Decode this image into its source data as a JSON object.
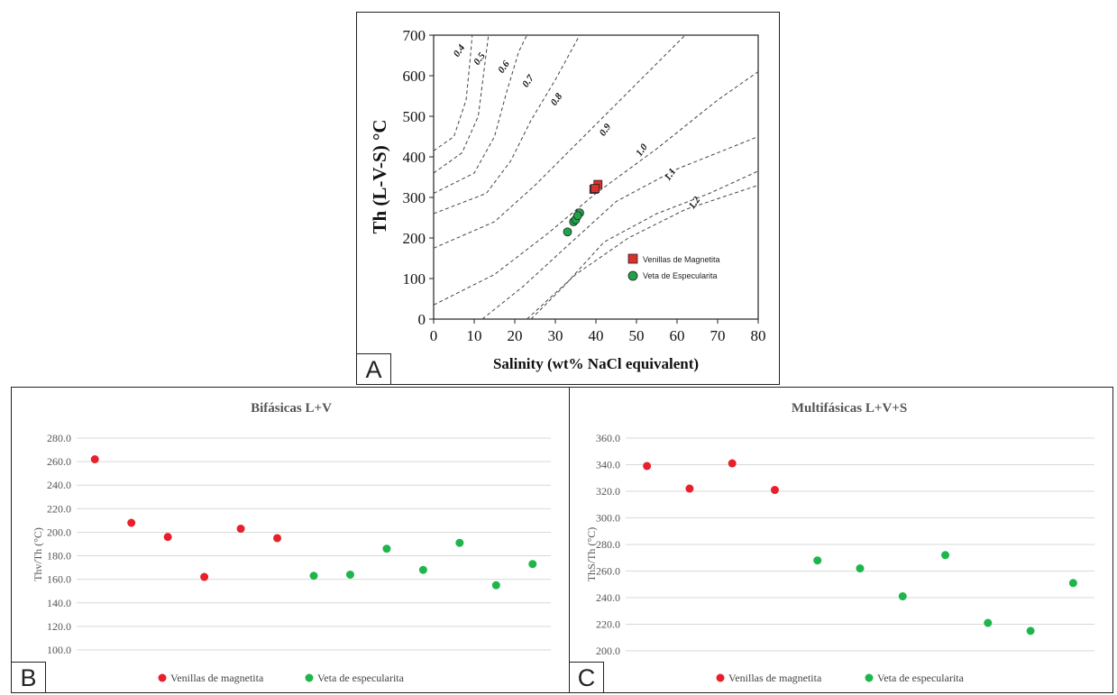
{
  "chart_data": [
    {
      "panel_label": "A",
      "type": "scatter",
      "xlabel": "Salinity (wt% NaCl equivalent)",
      "ylabel": "Th (L-V-S) °C",
      "xlim": [
        0,
        80
      ],
      "ylim": [
        0,
        700
      ],
      "x_ticks": [
        "0",
        "10",
        "20",
        "30",
        "40",
        "50",
        "60",
        "70",
        "80"
      ],
      "y_ticks": [
        "0",
        "100",
        "200",
        "300",
        "400",
        "500",
        "600",
        "700"
      ],
      "isochores": [
        {
          "label": "0.4",
          "points": [
            [
              0,
              415
            ],
            [
              5,
              450
            ],
            [
              8,
              540
            ],
            [
              9,
              640
            ],
            [
              9.5,
              700
            ]
          ]
        },
        {
          "label": "0.5",
          "points": [
            [
              0,
              360
            ],
            [
              7,
              410
            ],
            [
              11,
              500
            ],
            [
              12.5,
              620
            ],
            [
              13.5,
              700
            ]
          ]
        },
        {
          "label": "0.6",
          "points": [
            [
              0,
              310
            ],
            [
              10,
              360
            ],
            [
              15,
              450
            ],
            [
              18,
              560
            ],
            [
              21,
              660
            ],
            [
              23,
              700
            ]
          ]
        },
        {
          "label": "0.7",
          "points": [
            [
              0,
              260
            ],
            [
              13,
              310
            ],
            [
              19,
              390
            ],
            [
              24,
              490
            ],
            [
              30,
              590
            ],
            [
              36,
              700
            ]
          ]
        },
        {
          "label": "0.8",
          "points": [
            [
              0,
              175
            ],
            [
              15,
              240
            ],
            [
              25,
              330
            ],
            [
              35,
              430
            ],
            [
              48,
              560
            ],
            [
              60,
              680
            ],
            [
              62,
              700
            ]
          ]
        },
        {
          "label": "0.9",
          "points": [
            [
              0,
              35
            ],
            [
              15,
              110
            ],
            [
              28,
              210
            ],
            [
              40,
              310
            ],
            [
              55,
              420
            ],
            [
              70,
              540
            ],
            [
              80,
              610
            ]
          ]
        },
        {
          "label": "1.0",
          "points": [
            [
              12,
              0
            ],
            [
              22,
              80
            ],
            [
              34,
              190
            ],
            [
              45,
              290
            ],
            [
              60,
              370
            ],
            [
              80,
              450
            ]
          ]
        },
        {
          "label": "1.1",
          "points": [
            [
              24,
              0
            ],
            [
              32,
              80
            ],
            [
              42,
              190
            ],
            [
              55,
              260
            ],
            [
              68,
              310
            ],
            [
              80,
              365
            ]
          ]
        }
      ],
      "isochore_label_positions": {
        "0.4": [
          6,
          645
        ],
        "0.5": [
          11,
          625
        ],
        "0.6": [
          17,
          605
        ],
        "0.7": [
          23,
          570
        ],
        "0.8": [
          30,
          525
        ],
        "0.9": [
          42,
          450
        ],
        "1.0": [
          51,
          400
        ],
        "1.1": [
          58,
          340
        ],
        "1.2": [
          64,
          270
        ]
      },
      "series": [
        {
          "name": "Venillas de Magnetita",
          "color": "#d9302c",
          "marker": "square",
          "points": [
            [
              39.5,
              320
            ],
            [
              40.5,
              332
            ],
            [
              39.8,
              322
            ]
          ]
        },
        {
          "name": "Veta de Especularita",
          "color": "#1fa34a",
          "marker": "circle",
          "points": [
            [
              33,
              215
            ],
            [
              34.5,
              240
            ],
            [
              35,
              245
            ],
            [
              36,
              262
            ],
            [
              35.5,
              255
            ]
          ]
        }
      ],
      "legend_position": "bottom-right"
    },
    {
      "panel_label": "B",
      "type": "scatter",
      "title": "Bifásicas L+V",
      "ylabel": "Thv/Th (°C)",
      "ylim": [
        100,
        280
      ],
      "y_ticks": [
        "100.0",
        "120.0",
        "140.0",
        "160.0",
        "180.0",
        "200.0",
        "220.0",
        "240.0",
        "260.0",
        "280.0"
      ],
      "series": [
        {
          "name": "Venillas de magnetita",
          "color": "#e8202b",
          "x": [
            1,
            2,
            3,
            4,
            5,
            6
          ],
          "values": [
            262,
            208,
            196,
            162,
            203,
            195
          ]
        },
        {
          "name": "Veta de especularita",
          "color": "#1eb64a",
          "x": [
            7,
            8,
            9,
            10,
            11,
            12,
            13
          ],
          "values": [
            163,
            164,
            186,
            168,
            191,
            155,
            173
          ]
        }
      ],
      "x_count": 13,
      "grid": true,
      "legend_position": "bottom"
    },
    {
      "panel_label": "C",
      "type": "scatter",
      "title": "Multifásicas L+V+S",
      "ylabel": "ThS/Th (°C)",
      "ylim": [
        200,
        360
      ],
      "y_ticks": [
        "200.0",
        "220.0",
        "240.0",
        "260.0",
        "280.0",
        "300.0",
        "320.0",
        "340.0",
        "360.0"
      ],
      "series": [
        {
          "name": "Venillas de magnetita",
          "color": "#e8202b",
          "x": [
            1,
            2,
            3,
            4
          ],
          "values": [
            339,
            322,
            341,
            321
          ]
        },
        {
          "name": "Veta de especularita",
          "color": "#1eb64a",
          "x": [
            5,
            6,
            7,
            8,
            9,
            10,
            11
          ],
          "values": [
            268,
            262,
            241,
            272,
            221,
            215,
            251
          ]
        }
      ],
      "x_count": 11,
      "grid": true,
      "legend_position": "bottom"
    }
  ]
}
